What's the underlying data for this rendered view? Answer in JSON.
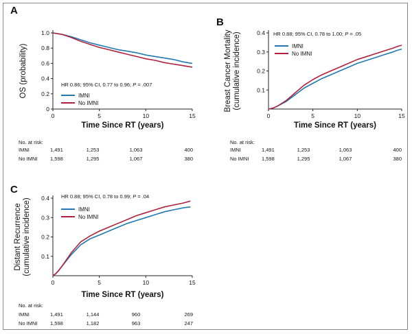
{
  "colors": {
    "imni": "#1f78b4",
    "no_imni": "#b0203a",
    "axis": "#222222"
  },
  "chart_data": [
    {
      "panel": "A",
      "type": "line",
      "ylabel": "OS (probability)",
      "ylabel_lines": [
        "OS (probability)"
      ],
      "xlabel": "Time Since RT (years)",
      "xlim": [
        0,
        15
      ],
      "ylim": [
        0,
        1.0
      ],
      "xticks": [
        0,
        5,
        10,
        15
      ],
      "yticks": [
        0,
        0.2,
        0.4,
        0.6,
        0.8,
        1.0
      ],
      "ytick_labels": [
        "0",
        "0.2",
        "0.4",
        "0.6",
        "0.8",
        "1.0"
      ],
      "hr_text": "HR 0.86; 95% CI, 0.77 to 0.96; P = .007",
      "legend": [
        "IMNI",
        "No IMNI"
      ],
      "series": [
        {
          "name": "IMNI",
          "x": [
            0,
            1,
            2,
            3,
            4,
            5,
            6,
            7,
            8,
            9,
            10,
            11,
            12,
            13,
            14,
            15
          ],
          "y": [
            1.0,
            0.98,
            0.95,
            0.91,
            0.87,
            0.84,
            0.81,
            0.78,
            0.76,
            0.74,
            0.71,
            0.69,
            0.67,
            0.65,
            0.62,
            0.6
          ]
        },
        {
          "name": "No IMNI",
          "x": [
            0,
            1,
            2,
            3,
            4,
            5,
            6,
            7,
            8,
            9,
            10,
            11,
            12,
            13,
            14,
            15
          ],
          "y": [
            1.0,
            0.98,
            0.94,
            0.89,
            0.85,
            0.81,
            0.78,
            0.75,
            0.72,
            0.69,
            0.66,
            0.64,
            0.61,
            0.59,
            0.57,
            0.55
          ]
        }
      ],
      "at_risk": {
        "header": "No. at risk:",
        "rows": [
          {
            "label": "IMNI",
            "values": [
              "1,491",
              "1,253",
              "1,063",
              "400"
            ]
          },
          {
            "label": "No IMNI",
            "values": [
              "1,598",
              "1,295",
              "1,067",
              "380"
            ]
          }
        ]
      }
    },
    {
      "panel": "B",
      "type": "line",
      "ylabel": "Breast Cancer Mortality (cumulative incidence)",
      "ylabel_lines": [
        "Breast Cancer Mortality",
        "(cumulative incidence)"
      ],
      "xlabel": "Time Since RT (years)",
      "xlim": [
        0,
        15
      ],
      "ylim": [
        0,
        0.4
      ],
      "xticks": [
        0,
        5,
        10,
        15
      ],
      "yticks": [
        0.1,
        0.2,
        0.3,
        0.4
      ],
      "ytick_labels": [
        "0.1",
        "0.2",
        "0.3",
        "0.4"
      ],
      "hr_text": "HR 0.88; 95% CI, 0.78 to 1.00; P = .05",
      "legend": [
        "IMNI",
        "No IMNI"
      ],
      "series": [
        {
          "name": "IMNI",
          "x": [
            0,
            0.5,
            1,
            2,
            3,
            4,
            5,
            6,
            7,
            8,
            9,
            10,
            11,
            12,
            13,
            14,
            14.6,
            15
          ],
          "y": [
            0,
            0.005,
            0.015,
            0.04,
            0.075,
            0.11,
            0.135,
            0.16,
            0.18,
            0.2,
            0.22,
            0.24,
            0.255,
            0.27,
            0.285,
            0.3,
            0.31,
            0.315
          ]
        },
        {
          "name": "No IMNI",
          "x": [
            0,
            0.5,
            1,
            2,
            3,
            4,
            5,
            6,
            7,
            8,
            9,
            10,
            11,
            12,
            13,
            14,
            14.6,
            15
          ],
          "y": [
            0,
            0.005,
            0.015,
            0.045,
            0.085,
            0.125,
            0.155,
            0.18,
            0.2,
            0.22,
            0.24,
            0.26,
            0.275,
            0.29,
            0.305,
            0.32,
            0.33,
            0.335
          ]
        }
      ],
      "at_risk": {
        "header": "No. at risk:",
        "rows": [
          {
            "label": "IMNI",
            "values": [
              "1,491",
              "1,253",
              "1,063",
              "400"
            ]
          },
          {
            "label": "No IMNI",
            "values": [
              "1,598",
              "1,295",
              "1,067",
              "380"
            ]
          }
        ]
      }
    },
    {
      "panel": "C",
      "type": "line",
      "ylabel": "Distant Recurrence (cumulative incidence)",
      "ylabel_lines": [
        "Distant Recurrence",
        "(cumulative incidence)"
      ],
      "xlabel": "Time Since RT (years)",
      "xlim": [
        0,
        15
      ],
      "ylim": [
        0,
        0.4
      ],
      "xticks": [
        0,
        5,
        10,
        15
      ],
      "yticks": [
        0.1,
        0.2,
        0.3,
        0.4
      ],
      "ytick_labels": [
        "0.1",
        "0.2",
        "0.3",
        "0.4"
      ],
      "hr_text": "HR 0.88; 95% CI, 0.78 to 0.99; P = .04",
      "legend": [
        "IMNI",
        "No IMNI"
      ],
      "series": [
        {
          "name": "IMNI",
          "x": [
            0,
            0.3,
            0.6,
            1,
            1.5,
            2,
            3,
            4,
            5,
            6,
            7,
            8,
            9,
            10,
            11,
            12,
            13,
            14,
            14.8
          ],
          "y": [
            0,
            0.01,
            0.025,
            0.05,
            0.08,
            0.11,
            0.16,
            0.19,
            0.21,
            0.23,
            0.25,
            0.27,
            0.285,
            0.3,
            0.315,
            0.33,
            0.34,
            0.35,
            0.355
          ]
        },
        {
          "name": "No IMNI",
          "x": [
            0,
            0.3,
            0.6,
            1,
            1.5,
            2,
            3,
            4,
            5,
            6,
            7,
            8,
            9,
            10,
            11,
            12,
            13,
            14,
            14.8
          ],
          "y": [
            0,
            0.01,
            0.025,
            0.05,
            0.085,
            0.12,
            0.175,
            0.205,
            0.23,
            0.25,
            0.27,
            0.29,
            0.31,
            0.325,
            0.34,
            0.355,
            0.365,
            0.375,
            0.385
          ]
        }
      ],
      "at_risk": {
        "header": "No. at risk:",
        "rows": [
          {
            "label": "IMNI",
            "values": [
              "1,491",
              "1,144",
              "960",
              "269"
            ]
          },
          {
            "label": "No IMNI",
            "values": [
              "1,598",
              "1,182",
              "963",
              "247"
            ]
          }
        ]
      }
    }
  ]
}
